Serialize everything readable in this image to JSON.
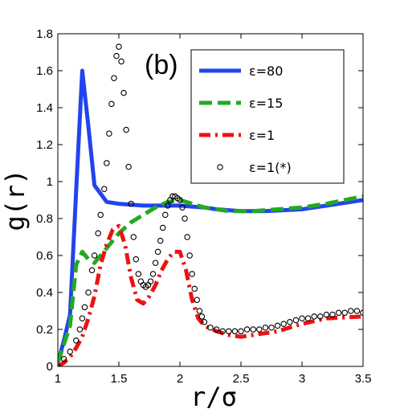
{
  "chart_data": {
    "type": "line",
    "panel_label": "(b)",
    "xlabel": "r/σ",
    "ylabel": "g(r)",
    "xlim": [
      1,
      3.5
    ],
    "ylim": [
      0,
      1.8
    ],
    "x_ticks": [
      "1",
      "1.5",
      "2",
      "2.5",
      "3",
      "3.5"
    ],
    "y_ticks": [
      "0",
      "0.2",
      "0.4",
      "0.6",
      "0.8",
      "1",
      "1.2",
      "1.4",
      "1.6",
      "1.8"
    ],
    "grid": false,
    "legend_position": "top-right",
    "series": [
      {
        "name": "ε=80",
        "style": "solid",
        "color": "#2244ee",
        "x": [
          1.0,
          1.05,
          1.1,
          1.15,
          1.2,
          1.25,
          1.3,
          1.4,
          1.5,
          1.6,
          1.7,
          1.8,
          1.9,
          2.0,
          2.1,
          2.2,
          2.3,
          2.5,
          2.7,
          3.0,
          3.2,
          3.5
        ],
        "y": [
          0.02,
          0.14,
          0.28,
          0.95,
          1.6,
          1.3,
          0.98,
          0.89,
          0.88,
          0.875,
          0.87,
          0.87,
          0.87,
          0.87,
          0.865,
          0.86,
          0.85,
          0.84,
          0.84,
          0.85,
          0.87,
          0.9
        ]
      },
      {
        "name": "ε=15",
        "style": "dashed",
        "color": "#22aa22",
        "x": [
          1.0,
          1.05,
          1.1,
          1.15,
          1.2,
          1.25,
          1.3,
          1.4,
          1.5,
          1.6,
          1.7,
          1.8,
          1.9,
          2.0,
          2.1,
          2.2,
          2.4,
          2.6,
          2.8,
          3.0,
          3.2,
          3.5
        ],
        "y": [
          0.02,
          0.12,
          0.22,
          0.55,
          0.62,
          0.58,
          0.56,
          0.64,
          0.72,
          0.78,
          0.82,
          0.86,
          0.89,
          0.9,
          0.88,
          0.86,
          0.84,
          0.84,
          0.85,
          0.86,
          0.88,
          0.92
        ]
      },
      {
        "name": "ε=1",
        "style": "dashdot",
        "color": "#ee1111",
        "x": [
          1.0,
          1.05,
          1.1,
          1.15,
          1.2,
          1.25,
          1.3,
          1.35,
          1.4,
          1.45,
          1.5,
          1.55,
          1.6,
          1.65,
          1.7,
          1.75,
          1.8,
          1.85,
          1.9,
          1.95,
          2.0,
          2.05,
          2.1,
          2.15,
          2.2,
          2.3,
          2.4,
          2.5,
          2.6,
          2.8,
          3.0,
          3.2,
          3.5
        ],
        "y": [
          0.0,
          0.02,
          0.05,
          0.1,
          0.16,
          0.26,
          0.38,
          0.55,
          0.66,
          0.74,
          0.76,
          0.66,
          0.48,
          0.36,
          0.34,
          0.38,
          0.44,
          0.52,
          0.58,
          0.62,
          0.62,
          0.52,
          0.36,
          0.26,
          0.22,
          0.19,
          0.17,
          0.16,
          0.17,
          0.19,
          0.23,
          0.26,
          0.27
        ]
      },
      {
        "name": "ε=1(*)",
        "style": "markers",
        "color": "#000000",
        "x": [
          1.0,
          1.05,
          1.1,
          1.15,
          1.18,
          1.2,
          1.22,
          1.25,
          1.28,
          1.3,
          1.33,
          1.35,
          1.38,
          1.4,
          1.42,
          1.44,
          1.46,
          1.48,
          1.5,
          1.52,
          1.54,
          1.56,
          1.58,
          1.6,
          1.62,
          1.64,
          1.66,
          1.68,
          1.7,
          1.72,
          1.74,
          1.76,
          1.78,
          1.8,
          1.82,
          1.84,
          1.86,
          1.88,
          1.9,
          1.92,
          1.94,
          1.96,
          1.98,
          2.0,
          2.02,
          2.04,
          2.06,
          2.08,
          2.1,
          2.12,
          2.14,
          2.16,
          2.18,
          2.2,
          2.25,
          2.3,
          2.35,
          2.4,
          2.45,
          2.5,
          2.55,
          2.6,
          2.65,
          2.7,
          2.75,
          2.8,
          2.85,
          2.9,
          2.95,
          3.0,
          3.05,
          3.1,
          3.15,
          3.2,
          3.25,
          3.3,
          3.35,
          3.4,
          3.45,
          3.5
        ],
        "y": [
          0.0,
          0.04,
          0.08,
          0.14,
          0.2,
          0.26,
          0.32,
          0.4,
          0.52,
          0.6,
          0.72,
          0.82,
          0.96,
          1.1,
          1.26,
          1.42,
          1.56,
          1.68,
          1.73,
          1.65,
          1.48,
          1.28,
          1.08,
          0.88,
          0.7,
          0.58,
          0.5,
          0.46,
          0.44,
          0.43,
          0.44,
          0.46,
          0.5,
          0.56,
          0.62,
          0.68,
          0.75,
          0.82,
          0.87,
          0.9,
          0.92,
          0.92,
          0.91,
          0.9,
          0.86,
          0.8,
          0.7,
          0.6,
          0.5,
          0.42,
          0.36,
          0.3,
          0.27,
          0.24,
          0.21,
          0.2,
          0.19,
          0.19,
          0.19,
          0.19,
          0.2,
          0.2,
          0.2,
          0.21,
          0.21,
          0.22,
          0.23,
          0.24,
          0.25,
          0.26,
          0.26,
          0.27,
          0.27,
          0.28,
          0.28,
          0.29,
          0.29,
          0.3,
          0.3,
          0.29
        ]
      }
    ]
  }
}
